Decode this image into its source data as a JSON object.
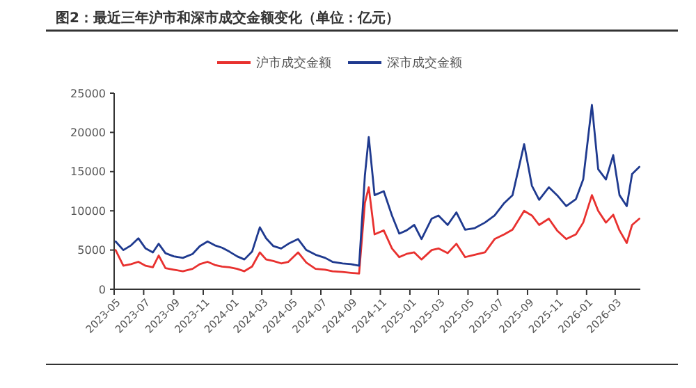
{
  "chart_data": {
    "type": "line",
    "title": "图2：最近三年沪市和深市成交金额变化（单位：亿元）",
    "x": [
      "2023-05-04",
      "2023-05-20",
      "2023-06-05",
      "2023-06-20",
      "2023-07-05",
      "2023-07-20",
      "2023-08-01",
      "2023-08-15",
      "2023-09-01",
      "2023-09-20",
      "2023-10-10",
      "2023-10-25",
      "2023-11-10",
      "2023-11-25",
      "2023-12-10",
      "2023-12-25",
      "2024-01-10",
      "2024-01-25",
      "2024-02-10",
      "2024-02-26",
      "2024-03-10",
      "2024-03-25",
      "2024-04-10",
      "2024-04-25",
      "2024-05-15",
      "2024-06-01",
      "2024-06-20",
      "2024-07-10",
      "2024-07-25",
      "2024-08-15",
      "2024-09-01",
      "2024-09-18",
      "2024-09-30",
      "2024-10-08",
      "2024-10-20",
      "2024-11-08",
      "2024-11-25",
      "2024-12-10",
      "2024-12-25",
      "2025-01-10",
      "2025-01-25",
      "2025-02-15",
      "2025-03-01",
      "2025-03-20",
      "2025-04-07",
      "2025-04-25",
      "2025-05-15",
      "2025-06-05",
      "2025-06-25",
      "2025-07-15",
      "2025-08-01",
      "2025-08-25",
      "2025-09-10",
      "2025-09-25",
      "2025-10-15",
      "2025-11-01",
      "2025-11-20",
      "2025-12-10",
      "2025-12-25",
      "2026-01-12",
      "2026-01-25",
      "2026-02-10",
      "2026-02-25",
      "2026-03-10",
      "2026-03-25",
      "2026-04-05",
      "2026-04-20"
    ],
    "series": [
      {
        "name": "沪市成交金额",
        "color": "#e8312f",
        "values": [
          5000,
          3000,
          3200,
          3500,
          3000,
          2800,
          4300,
          2700,
          2500,
          2300,
          2600,
          3200,
          3500,
          3100,
          2900,
          2800,
          2600,
          2300,
          2900,
          4700,
          3800,
          3600,
          3300,
          3500,
          4700,
          3400,
          2600,
          2500,
          2300,
          2200,
          2100,
          2000,
          11000,
          13000,
          7000,
          7500,
          5200,
          4100,
          4500,
          4700,
          3800,
          5000,
          5200,
          4600,
          5800,
          4100,
          4400,
          4700,
          6400,
          7000,
          7600,
          10000,
          9400,
          8200,
          9000,
          7500,
          6400,
          7000,
          8500,
          12000,
          10000,
          8500,
          9500,
          7500,
          5900,
          8200,
          9000
        ]
      },
      {
        "name": "深市成交金额",
        "color": "#1f3a8f",
        "values": [
          6100,
          5000,
          5600,
          6500,
          5200,
          4700,
          5800,
          4600,
          4200,
          4000,
          4500,
          5500,
          6100,
          5600,
          5300,
          4800,
          4200,
          3800,
          4800,
          7900,
          6500,
          5500,
          5200,
          5800,
          6400,
          5000,
          4400,
          4000,
          3500,
          3300,
          3200,
          3000,
          14500,
          19400,
          12000,
          12500,
          9400,
          7100,
          7500,
          8200,
          6400,
          9000,
          9400,
          8200,
          9800,
          7600,
          7800,
          8500,
          9400,
          11000,
          12000,
          18500,
          13200,
          11400,
          13000,
          12000,
          10600,
          11500,
          14000,
          23500,
          15300,
          14000,
          17100,
          12000,
          10600,
          14700,
          15600
        ]
      }
    ],
    "xlim": [
      "2023-05-01",
      "2026-04-22"
    ],
    "xticks": [
      "2023-05",
      "2023-07",
      "2023-09",
      "2023-11",
      "2024-01",
      "2024-03",
      "2024-05",
      "2024-07",
      "2024-09",
      "2024-11",
      "2025-01",
      "2025-03",
      "2025-05",
      "2025-07",
      "2025-09",
      "2025-11",
      "2026-01",
      "2026-03"
    ],
    "ylim": [
      0,
      25000
    ],
    "yticks": [
      0,
      5000,
      10000,
      15000,
      20000,
      25000
    ],
    "grid": false,
    "legend": "top",
    "marker": "none",
    "line_style": "solid"
  }
}
